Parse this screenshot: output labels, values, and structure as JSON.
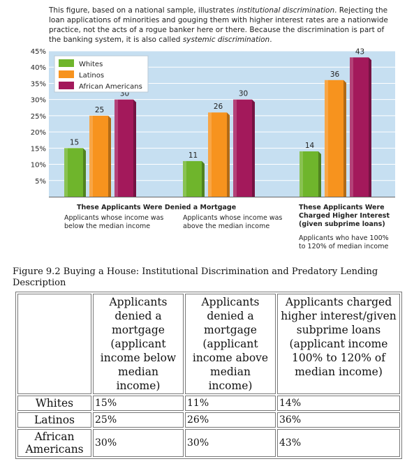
{
  "intro": {
    "p1": "This figure, based on a national sample, illustrates ",
    "em1": "institutional discrimination",
    "p2": ". Rejecting the loan applications of minorities and gouging them with higher interest rates are a nationwide practice, not the acts of a rogue banker here or there. Because the discrimination is part of the banking system, it is also called ",
    "em2": "systemic discrimination",
    "p3": "."
  },
  "chart_data": {
    "type": "bar",
    "categories": [
      "Applicants whose income was below the median income",
      "Applicants whose income was above the median income",
      "Applicants who have 100% to 120% of median income"
    ],
    "series": [
      {
        "name": "Whites",
        "values": [
          15,
          11,
          14
        ],
        "color": "#6fb52c"
      },
      {
        "name": "Latinos",
        "values": [
          25,
          26,
          36
        ],
        "color": "#f7931e"
      },
      {
        "name": "African Americans",
        "values": [
          30,
          30,
          43
        ],
        "color": "#a3195b"
      }
    ],
    "ylim": [
      0,
      45
    ],
    "yticks": [
      "5%",
      "10%",
      "15%",
      "20%",
      "25%",
      "30%",
      "35%",
      "40%",
      "45%"
    ],
    "grid": true,
    "legend": "top-left",
    "plot_bg": "#c6dff1",
    "group_headers": [
      "These Applicants Were Denied a Mortgage",
      "These Applicants Were Charged Higher Interest (given subprime loans)"
    ]
  },
  "labels": {
    "g1": "Applicants whose income was below the median income",
    "g2": "Applicants whose income was above the median income",
    "g3": "Applicants who have 100% to 120% of median income",
    "h1": "These Applicants Were Denied a Mortgage",
    "h2": "These Applicants Were Charged Higher Interest (given subprime loans)"
  },
  "caption": "Figure 9.2 Buying a House: Institutional Discrimination and Predatory Lending Description",
  "table": {
    "headers": [
      "",
      "Applicants denied a mortgage (applicant income below median income)",
      "Applicants denied a mortgage (applicant income above median income)",
      "Applicants charged higher interest/given subprime loans (applicant income 100% to 120% of median income)"
    ],
    "rows": [
      {
        "label": "Whites",
        "cells": [
          "15%",
          "11%",
          "14%"
        ]
      },
      {
        "label": "Latinos",
        "cells": [
          "25%",
          "26%",
          "36%"
        ]
      },
      {
        "label": "African Americans",
        "cells": [
          "30%",
          "30%",
          "43%"
        ]
      }
    ]
  }
}
